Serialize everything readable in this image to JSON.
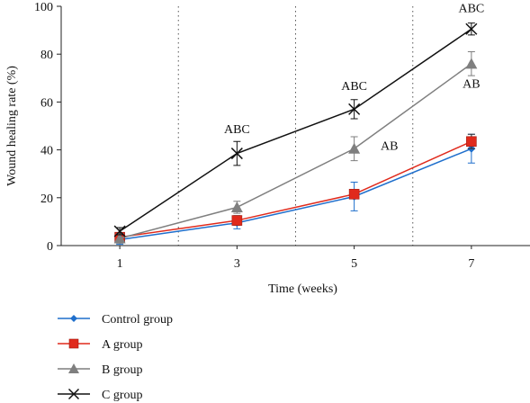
{
  "chart_data": {
    "type": "line",
    "xlabel": "Time (weeks)",
    "ylabel": "Wound healing rate (%)",
    "x": [
      1,
      3,
      5,
      7
    ],
    "xlim": [
      0,
      8
    ],
    "ylim": [
      0,
      100
    ],
    "yticks": [
      0,
      20,
      40,
      60,
      80,
      100
    ],
    "grid": false,
    "vertical_dividers": [
      2,
      4,
      6
    ],
    "legend_position": "bottom-left",
    "series": [
      {
        "name": "Control group",
        "color": "#1f6fcc",
        "marker": "diamond",
        "values": [
          2.5,
          9.5,
          20.5,
          40.5
        ],
        "errors": [
          2,
          2.5,
          6,
          6
        ]
      },
      {
        "name": "A group",
        "color": "#e02a1c",
        "marker": "square",
        "values": [
          3.5,
          10.5,
          21.5,
          43.5
        ],
        "errors": [
          1.5,
          2,
          1.5,
          3
        ]
      },
      {
        "name": "B group",
        "color": "#7f7f7f",
        "marker": "triangle",
        "values": [
          3,
          16,
          40.5,
          76
        ],
        "errors": [
          2,
          2.5,
          5,
          5
        ]
      },
      {
        "name": "C group",
        "color": "#111111",
        "marker": "x",
        "values": [
          6,
          38.5,
          57,
          90.5
        ],
        "errors": [
          1.5,
          5,
          4,
          2.5
        ]
      }
    ],
    "annotations": [
      {
        "text": "ABC",
        "x": 3,
        "y": 47
      },
      {
        "text": "ABC",
        "x": 5,
        "y": 65
      },
      {
        "text": "ABC",
        "x": 7,
        "y": 97.5
      },
      {
        "text": "AB",
        "x": 5.6,
        "y": 40
      },
      {
        "text": "AB",
        "x": 7,
        "y": 66
      }
    ]
  }
}
